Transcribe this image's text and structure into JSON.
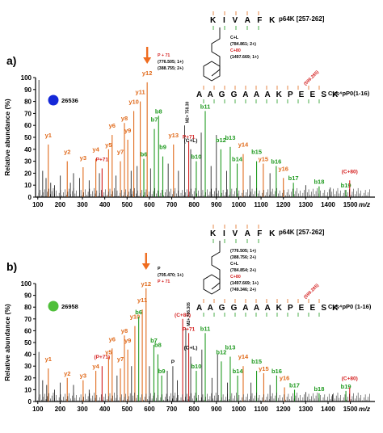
{
  "colors": {
    "axis": "#000000",
    "peak_black": "#111111",
    "y_ion": "#e06a1b",
    "b_ion": "#1f9a1f",
    "mod": "#d41e1e",
    "arrow": "#ef6c1f",
    "dot_a": "#1428d8",
    "dot_b": "#4fbf3a"
  },
  "chart_data": [
    {
      "type": "bar",
      "panel_label": "a)",
      "sample_id": "26536",
      "dot": "dot_a",
      "ylabel": "Relative abundance (%)",
      "xlabel": "m/z",
      "xlim": [
        90,
        1610
      ],
      "ylim": [
        0,
        100
      ],
      "xticks": [
        "100",
        "200",
        "300",
        "400",
        "500",
        "600",
        "700",
        "800",
        "900",
        "1000",
        "1100",
        "1200",
        "1300",
        "1400",
        "1500"
      ],
      "yticks": [
        "0",
        "10",
        "20",
        "30",
        "40",
        "50",
        "60",
        "70",
        "80",
        "90",
        "100"
      ],
      "peptide_top": "p64K [257-262]",
      "peptide_bottom": "Cys⁴pP0(1-16)",
      "sequence_top": "K I V A F K",
      "sequence_bottom": "A A G G A A A K P E E S K",
      "structure_notes": [
        "P + 71",
        "(776.505; 1+)",
        "(388.755; 2+)",
        "C+L",
        "(784.861; 2+)",
        "C+80",
        "(1497.669; 1+)"
      ],
      "special_label": "(599.285)",
      "peak_label": "M2+ 758.30",
      "peaks": [
        {
          "mz": 105,
          "h": 98,
          "ion": "black"
        },
        {
          "mz": 122,
          "h": 22,
          "ion": "black"
        },
        {
          "mz": 137,
          "h": 16,
          "ion": "black"
        },
        {
          "mz": 147,
          "h": 44,
          "ion": "y",
          "label": "y1"
        },
        {
          "mz": 158,
          "h": 12,
          "ion": "black"
        },
        {
          "mz": 175,
          "h": 10,
          "ion": "black"
        },
        {
          "mz": 201,
          "h": 18,
          "ion": "black"
        },
        {
          "mz": 232,
          "h": 30,
          "ion": "y",
          "label": "y2"
        },
        {
          "mz": 246,
          "h": 12,
          "ion": "black"
        },
        {
          "mz": 260,
          "h": 20,
          "ion": "black"
        },
        {
          "mz": 287,
          "h": 16,
          "ion": "black"
        },
        {
          "mz": 303,
          "h": 25,
          "ion": "y",
          "label": "y3"
        },
        {
          "mz": 330,
          "h": 14,
          "ion": "black"
        },
        {
          "mz": 360,
          "h": 32,
          "ion": "y",
          "label": "y4"
        },
        {
          "mz": 376,
          "h": 20,
          "ion": "black"
        },
        {
          "mz": 388,
          "h": 24,
          "ion": "mod",
          "label": "P+71"
        },
        {
          "mz": 417,
          "h": 40,
          "ion": "y",
          "label": "y5"
        },
        {
          "mz": 433,
          "h": 52,
          "ion": "y",
          "label": "y6"
        },
        {
          "mz": 450,
          "h": 18,
          "ion": "black"
        },
        {
          "mz": 470,
          "h": 30,
          "ion": "y",
          "label": "y7"
        },
        {
          "mz": 488,
          "h": 62,
          "ion": "y",
          "label": "y8"
        },
        {
          "mz": 503,
          "h": 48,
          "ion": "y",
          "label": "y9"
        },
        {
          "mz": 518,
          "h": 22,
          "ion": "black"
        },
        {
          "mz": 530,
          "h": 72,
          "ion": "y",
          "label": "y10"
        },
        {
          "mz": 545,
          "h": 26,
          "ion": "black"
        },
        {
          "mz": 559,
          "h": 80,
          "ion": "y",
          "label": "y11"
        },
        {
          "mz": 575,
          "h": 32,
          "ion": "b",
          "label": "b6"
        },
        {
          "mz": 590,
          "h": 96,
          "ion": "y",
          "label": "y12"
        },
        {
          "mz": 605,
          "h": 24,
          "ion": "black"
        },
        {
          "mz": 622,
          "h": 57,
          "ion": "b",
          "label": "b7"
        },
        {
          "mz": 641,
          "h": 68,
          "ion": "b",
          "label": "b8"
        },
        {
          "mz": 660,
          "h": 34,
          "ion": "b",
          "label": "b9"
        },
        {
          "mz": 684,
          "h": 28,
          "ion": "black"
        },
        {
          "mz": 708,
          "h": 44,
          "ion": "y",
          "label": "y13"
        },
        {
          "mz": 730,
          "h": 22,
          "ion": "black"
        },
        {
          "mz": 758,
          "h": 60,
          "ion": "black"
        },
        {
          "mz": 776,
          "h": 47,
          "ion": "mod",
          "label": "P+71"
        },
        {
          "mz": 785,
          "h": 40,
          "ion": "black",
          "label": "(C+L)"
        },
        {
          "mz": 810,
          "h": 30,
          "ion": "b",
          "label": "b10"
        },
        {
          "mz": 832,
          "h": 54,
          "ion": "black"
        },
        {
          "mz": 850,
          "h": 72,
          "ion": "b",
          "label": "b11"
        },
        {
          "mz": 876,
          "h": 26,
          "ion": "black"
        },
        {
          "mz": 900,
          "h": 52,
          "ion": "black"
        },
        {
          "mz": 920,
          "h": 40,
          "ion": "b",
          "label": "b12"
        },
        {
          "mz": 946,
          "h": 22,
          "ion": "black"
        },
        {
          "mz": 962,
          "h": 42,
          "ion": "b",
          "label": "b13"
        },
        {
          "mz": 993,
          "h": 28,
          "ion": "b",
          "label": "b14"
        },
        {
          "mz": 1020,
          "h": 36,
          "ion": "y",
          "label": "y14"
        },
        {
          "mz": 1050,
          "h": 18,
          "ion": "black"
        },
        {
          "mz": 1080,
          "h": 30,
          "ion": "b",
          "label": "b15"
        },
        {
          "mz": 1110,
          "h": 28,
          "ion": "y",
          "label": "y15"
        },
        {
          "mz": 1140,
          "h": 20,
          "ion": "black"
        },
        {
          "mz": 1168,
          "h": 26,
          "ion": "b",
          "label": "b16"
        },
        {
          "mz": 1200,
          "h": 16,
          "ion": "y",
          "label": "y16"
        },
        {
          "mz": 1245,
          "h": 12,
          "ion": "b",
          "label": "b17"
        },
        {
          "mz": 1300,
          "h": 10,
          "ion": "black"
        },
        {
          "mz": 1360,
          "h": 9,
          "ion": "b",
          "label": "b18"
        },
        {
          "mz": 1410,
          "h": 8,
          "ion": "black"
        },
        {
          "mz": 1480,
          "h": 6,
          "ion": "b",
          "label": "b19"
        },
        {
          "mz": 1497,
          "h": 14,
          "ion": "mod",
          "label": "(C+80)"
        }
      ]
    },
    {
      "type": "bar",
      "panel_label": "b)",
      "sample_id": "26958",
      "dot": "dot_b",
      "ylabel": "Relative abundance (%)",
      "xlabel": "m/z",
      "xlim": [
        90,
        1610
      ],
      "ylim": [
        0,
        100
      ],
      "xticks": [
        "100",
        "200",
        "300",
        "400",
        "500",
        "600",
        "700",
        "800",
        "900",
        "1000",
        "1100",
        "1200",
        "1300",
        "1400",
        "1500"
      ],
      "yticks": [
        "0",
        "10",
        "20",
        "30",
        "40",
        "50",
        "60",
        "70",
        "80",
        "90",
        "100"
      ],
      "peptide_top": "p64K [257-262]",
      "peptide_bottom": "Cys⁴pP0 (1-16)",
      "sequence_top": "K I V A F K",
      "sequence_bottom": "A A G G A A A K P E E S K",
      "structure_notes": [
        "P",
        "(705.470; 1+)",
        "P + 71",
        "(776.505; 1+)",
        "(388.756; 2+)",
        "C+L",
        "(784.854; 2+)",
        "C+80",
        "(1497.669; 1+)",
        "(749.346; 2+)"
      ],
      "special_label": "(599.285)",
      "peak_label": "M2+ 706.305",
      "peaks": [
        {
          "mz": 105,
          "h": 42,
          "ion": "black"
        },
        {
          "mz": 122,
          "h": 18,
          "ion": "black"
        },
        {
          "mz": 140,
          "h": 14,
          "ion": "black"
        },
        {
          "mz": 147,
          "h": 28,
          "ion": "y",
          "label": "y1"
        },
        {
          "mz": 175,
          "h": 10,
          "ion": "black"
        },
        {
          "mz": 200,
          "h": 16,
          "ion": "black"
        },
        {
          "mz": 232,
          "h": 20,
          "ion": "y",
          "label": "y2"
        },
        {
          "mz": 260,
          "h": 14,
          "ion": "black"
        },
        {
          "mz": 303,
          "h": 18,
          "ion": "y",
          "label": "y3"
        },
        {
          "mz": 330,
          "h": 10,
          "ion": "black"
        },
        {
          "mz": 360,
          "h": 26,
          "ion": "y",
          "label": "y4"
        },
        {
          "mz": 388,
          "h": 30,
          "ion": "mod",
          "label": "(P+71)"
        },
        {
          "mz": 417,
          "h": 38,
          "ion": "y",
          "label": "y5"
        },
        {
          "mz": 433,
          "h": 45,
          "ion": "y",
          "label": "y6"
        },
        {
          "mz": 455,
          "h": 22,
          "ion": "black"
        },
        {
          "mz": 470,
          "h": 28,
          "ion": "y",
          "label": "y7"
        },
        {
          "mz": 488,
          "h": 56,
          "ion": "y",
          "label": "y8"
        },
        {
          "mz": 503,
          "h": 44,
          "ion": "y",
          "label": "y9"
        },
        {
          "mz": 520,
          "h": 30,
          "ion": "black"
        },
        {
          "mz": 535,
          "h": 64,
          "ion": "y",
          "label": "y10"
        },
        {
          "mz": 552,
          "h": 72,
          "ion": "b",
          "label": "b6"
        },
        {
          "mz": 568,
          "h": 78,
          "ion": "y",
          "label": "y11"
        },
        {
          "mz": 585,
          "h": 96,
          "ion": "y",
          "label": "y12"
        },
        {
          "mz": 600,
          "h": 30,
          "ion": "black"
        },
        {
          "mz": 620,
          "h": 48,
          "ion": "b",
          "label": "b7"
        },
        {
          "mz": 638,
          "h": 40,
          "ion": "b",
          "label": "b8"
        },
        {
          "mz": 655,
          "h": 22,
          "ion": "b",
          "label": "b9"
        },
        {
          "mz": 680,
          "h": 26,
          "ion": "black"
        },
        {
          "mz": 705,
          "h": 30,
          "ion": "black",
          "label": "P"
        },
        {
          "mz": 725,
          "h": 18,
          "ion": "black"
        },
        {
          "mz": 749,
          "h": 70,
          "ion": "mod",
          "label": "(C+80)"
        },
        {
          "mz": 763,
          "h": 62,
          "ion": "black"
        },
        {
          "mz": 776,
          "h": 58,
          "ion": "mod",
          "label": "P+71"
        },
        {
          "mz": 785,
          "h": 38,
          "ion": "black",
          "label": "(C+L)"
        },
        {
          "mz": 810,
          "h": 26,
          "ion": "b",
          "label": "b10"
        },
        {
          "mz": 835,
          "h": 44,
          "ion": "black"
        },
        {
          "mz": 850,
          "h": 58,
          "ion": "b",
          "label": "b11"
        },
        {
          "mz": 880,
          "h": 20,
          "ion": "black"
        },
        {
          "mz": 905,
          "h": 40,
          "ion": "black"
        },
        {
          "mz": 922,
          "h": 34,
          "ion": "b",
          "label": "b12"
        },
        {
          "mz": 950,
          "h": 16,
          "ion": "black"
        },
        {
          "mz": 962,
          "h": 38,
          "ion": "b",
          "label": "b13"
        },
        {
          "mz": 995,
          "h": 22,
          "ion": "b",
          "label": "b14"
        },
        {
          "mz": 1020,
          "h": 30,
          "ion": "y",
          "label": "y14"
        },
        {
          "mz": 1055,
          "h": 16,
          "ion": "black"
        },
        {
          "mz": 1080,
          "h": 26,
          "ion": "b",
          "label": "b15"
        },
        {
          "mz": 1112,
          "h": 24,
          "ion": "y",
          "label": "y15"
        },
        {
          "mz": 1140,
          "h": 14,
          "ion": "black"
        },
        {
          "mz": 1170,
          "h": 22,
          "ion": "b",
          "label": "b16"
        },
        {
          "mz": 1205,
          "h": 12,
          "ion": "y",
          "label": "y16"
        },
        {
          "mz": 1250,
          "h": 10,
          "ion": "b",
          "label": "b17"
        },
        {
          "mz": 1300,
          "h": 8,
          "ion": "black"
        },
        {
          "mz": 1360,
          "h": 7,
          "ion": "b",
          "label": "b18"
        },
        {
          "mz": 1420,
          "h": 6,
          "ion": "black"
        },
        {
          "mz": 1480,
          "h": 9,
          "ion": "b",
          "label": "b19"
        },
        {
          "mz": 1497,
          "h": 12,
          "ion": "mod",
          "label": "(C+80)"
        }
      ]
    }
  ]
}
